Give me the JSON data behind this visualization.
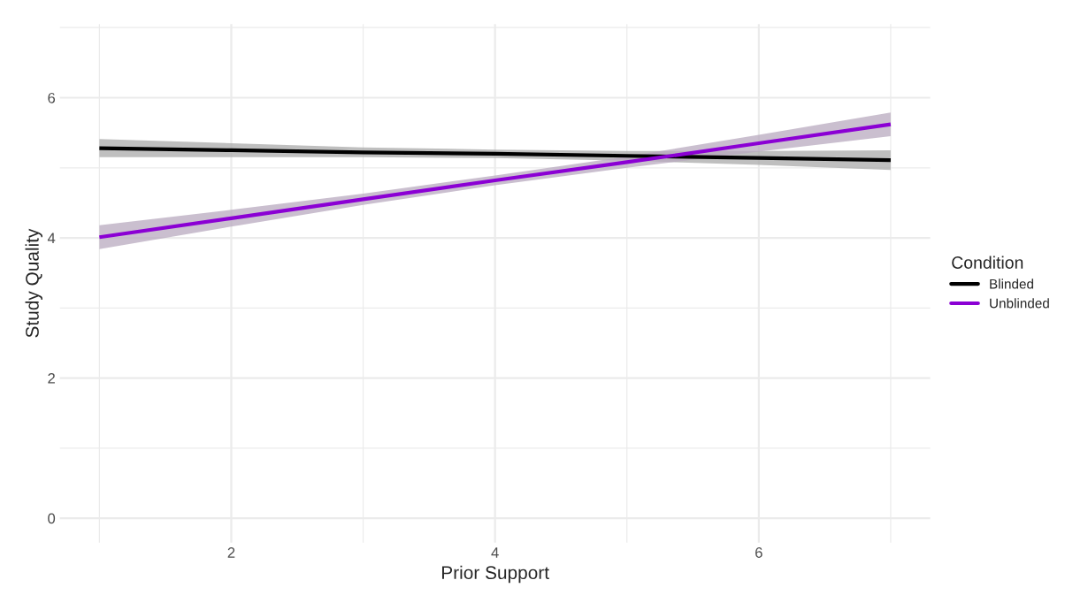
{
  "chart_data": {
    "type": "line",
    "xlabel": "Prior Support",
    "ylabel": "Study Quality",
    "legend_title": "Condition",
    "x": [
      1,
      2,
      3,
      4,
      5,
      6,
      7
    ],
    "series": [
      {
        "name": "Blinded",
        "color": "#000000",
        "values": [
          5.28,
          5.25,
          5.22,
          5.2,
          5.17,
          5.14,
          5.11
        ],
        "lower": [
          5.15,
          5.15,
          5.15,
          5.14,
          5.1,
          5.04,
          4.97
        ],
        "upper": [
          5.41,
          5.35,
          5.29,
          5.26,
          5.24,
          5.24,
          5.25
        ]
      },
      {
        "name": "Unblinded",
        "color": "#8b00d4",
        "values": [
          4.01,
          4.28,
          4.55,
          4.82,
          5.08,
          5.35,
          5.62
        ],
        "lower": [
          3.84,
          4.16,
          4.47,
          4.75,
          5.0,
          5.23,
          5.45
        ],
        "upper": [
          4.18,
          4.4,
          4.63,
          4.89,
          5.16,
          5.47,
          5.79
        ]
      }
    ],
    "xlim": [
      0.7,
      7.3
    ],
    "ylim": [
      -0.35,
      7.05
    ],
    "xticks": [
      2,
      4,
      6
    ],
    "yticks": [
      0,
      2,
      4,
      6
    ],
    "grid": true,
    "legend": "right",
    "marker": "none",
    "line_style": "solid"
  }
}
